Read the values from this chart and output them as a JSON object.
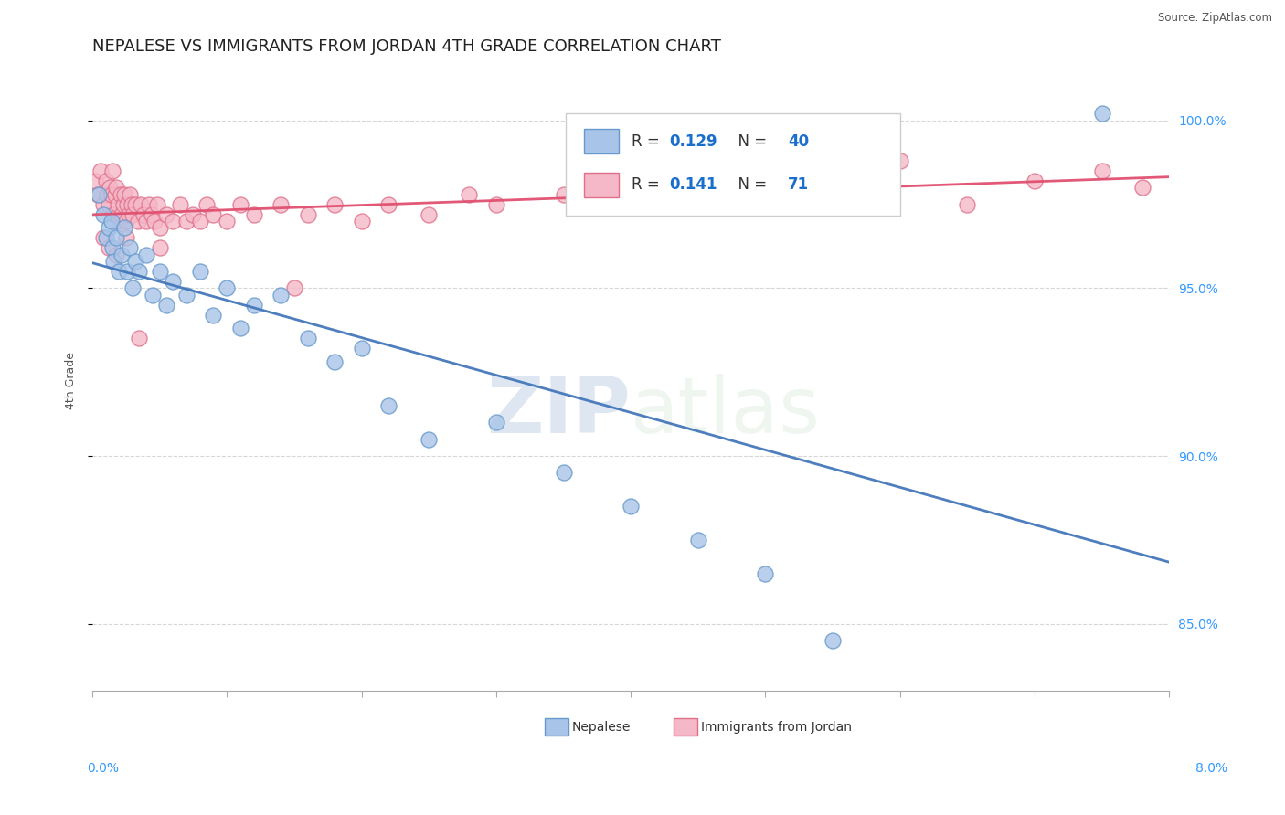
{
  "title": "NEPALESE VS IMMIGRANTS FROM JORDAN 4TH GRADE CORRELATION CHART",
  "source": "Source: ZipAtlas.com",
  "ylabel": "4th Grade",
  "watermark": "ZIPatlas",
  "series": [
    {
      "label": "Nepalese",
      "R": 0.129,
      "N": 40,
      "color": "#a8c4e8",
      "edge_color": "#6699cc",
      "trend_color": "#4477bb",
      "x": [
        0.05,
        0.08,
        0.1,
        0.12,
        0.14,
        0.15,
        0.16,
        0.18,
        0.2,
        0.22,
        0.24,
        0.26,
        0.28,
        0.3,
        0.32,
        0.35,
        0.4,
        0.45,
        0.5,
        0.55,
        0.6,
        0.7,
        0.8,
        0.9,
        1.0,
        1.1,
        1.2,
        1.4,
        1.6,
        1.8,
        2.0,
        2.2,
        2.5,
        3.0,
        3.5,
        4.0,
        4.5,
        5.0,
        5.5,
        7.5
      ],
      "y": [
        97.8,
        97.2,
        96.5,
        96.8,
        97.0,
        96.2,
        95.8,
        96.5,
        95.5,
        96.0,
        96.8,
        95.5,
        96.2,
        95.0,
        95.8,
        95.5,
        96.0,
        94.8,
        95.5,
        94.5,
        95.2,
        94.8,
        95.5,
        94.2,
        95.0,
        93.8,
        94.5,
        94.8,
        93.5,
        92.8,
        93.2,
        91.5,
        90.5,
        91.0,
        89.5,
        88.5,
        87.5,
        86.5,
        84.5,
        100.2
      ]
    },
    {
      "label": "Immigrants from Jordan",
      "R": 0.141,
      "N": 71,
      "color": "#f5b8c8",
      "edge_color": "#e0708a",
      "trend_color": "#e05070",
      "x": [
        0.02,
        0.04,
        0.06,
        0.08,
        0.1,
        0.11,
        0.12,
        0.13,
        0.14,
        0.15,
        0.16,
        0.17,
        0.18,
        0.19,
        0.2,
        0.21,
        0.22,
        0.23,
        0.24,
        0.25,
        0.26,
        0.27,
        0.28,
        0.29,
        0.3,
        0.32,
        0.34,
        0.36,
        0.38,
        0.4,
        0.42,
        0.44,
        0.46,
        0.48,
        0.5,
        0.55,
        0.6,
        0.65,
        0.7,
        0.75,
        0.8,
        0.85,
        0.9,
        1.0,
        1.1,
        1.2,
        1.4,
        1.6,
        1.8,
        2.0,
        2.2,
        2.5,
        2.8,
        3.0,
        3.5,
        4.0,
        4.5,
        5.0,
        5.5,
        6.0,
        6.5,
        7.0,
        7.5,
        7.8,
        0.08,
        0.12,
        0.18,
        0.25,
        0.35,
        0.5,
        1.5
      ],
      "y": [
        98.2,
        97.8,
        98.5,
        97.5,
        98.2,
        97.8,
        97.5,
        98.0,
        97.8,
        98.5,
        97.2,
        97.8,
        98.0,
        97.5,
        97.0,
        97.8,
        97.2,
        97.5,
        97.8,
        97.0,
        97.5,
        97.2,
        97.8,
        97.5,
        97.2,
        97.5,
        97.0,
        97.5,
        97.2,
        97.0,
        97.5,
        97.2,
        97.0,
        97.5,
        96.8,
        97.2,
        97.0,
        97.5,
        97.0,
        97.2,
        97.0,
        97.5,
        97.2,
        97.0,
        97.5,
        97.2,
        97.5,
        97.2,
        97.5,
        97.0,
        97.5,
        97.2,
        97.8,
        97.5,
        97.8,
        98.0,
        98.2,
        98.0,
        98.5,
        98.8,
        97.5,
        98.2,
        98.5,
        98.0,
        96.5,
        96.2,
        96.0,
        96.5,
        93.5,
        96.2,
        95.0
      ]
    }
  ],
  "xlim": [
    0.0,
    8.0
  ],
  "ylim": [
    83.0,
    101.5
  ],
  "yticks": [
    85.0,
    90.0,
    95.0,
    100.0
  ],
  "background_color": "#ffffff",
  "grid_color": "#cccccc",
  "title_fontsize": 13,
  "legend_R_color": "#1a6fcc",
  "legend_N_color": "#1a6fcc"
}
